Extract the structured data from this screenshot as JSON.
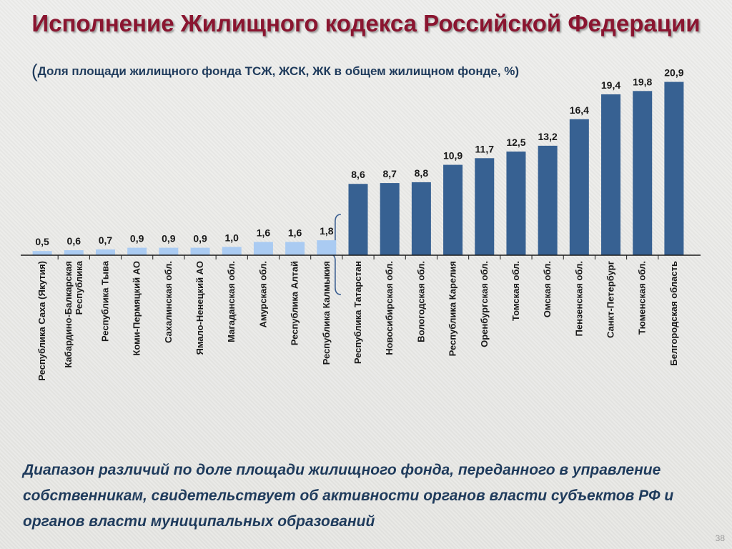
{
  "title": "Исполнение Жилищного кодекса Российской Федерации",
  "subtitle": {
    "open_paren": "(",
    "text": "Доля площади жилищного фонда ТСЖ, ЖСК, ЖК в общем жилищном фонде, %)"
  },
  "note": "Диапазон различий по доле площади жилищного фонда, переданного в управление собственникам, свидетельствует об активности органов власти субъектов РФ и органов власти муниципальных образований",
  "page_number": "38",
  "colors": {
    "light_bar": "#aacbf2",
    "dark_bar": "#376192",
    "title": "#8a1530",
    "text": "#1f3b5c"
  },
  "chart_data": {
    "type": "bar",
    "title": "",
    "xlabel": "",
    "ylabel": "",
    "ylim": [
      0,
      22
    ],
    "grid": false,
    "legend": "none",
    "categories": [
      "Республика Саха (Якутия)",
      "Кабардино-Балкарская Республика",
      "Республика Тыва",
      "Коми-Пермяцкий  АО",
      "Сахалинская обл.",
      "Ямало-Ненецкий АО",
      "Магаданская обл.",
      "Амурская обл.",
      "Республика Алтай",
      "Республика Калмыкия",
      "Республика Татарстан",
      "Новосибирская обл.",
      "Вологодская обл.",
      "Республика Карелия",
      "Оренбургская обл.",
      "Томская обл.",
      "Омская обл.",
      "Пензенская обл.",
      "Санкт-Петербург",
      "Тюменская обл.",
      "Белгородская область"
    ],
    "values": [
      0.5,
      0.6,
      0.7,
      0.9,
      0.9,
      0.9,
      1.0,
      1.6,
      1.6,
      1.8,
      8.6,
      8.7,
      8.8,
      10.9,
      11.7,
      12.5,
      13.2,
      16.4,
      19.4,
      19.8,
      20.9
    ],
    "value_labels": [
      "0,5",
      "0,6",
      "0,7",
      "0,9",
      "0,9",
      "0,9",
      "1,0",
      "1,6",
      "1,6",
      "1,8",
      "8,6",
      "8,7",
      "8,8",
      "10,9",
      "11,7",
      "12,5",
      "13,2",
      "16,4",
      "19,4",
      "19,8",
      "20,9"
    ],
    "category_lines": [
      [
        "Республика Саха (Якутия)"
      ],
      [
        "Кабардино-Балкарская",
        "Республика"
      ],
      [
        "Республика Тыва"
      ],
      [
        "Коми-Пермяцкий  АО"
      ],
      [
        "Сахалинская обл."
      ],
      [
        "Ямало-Ненецкий АО"
      ],
      [
        "Магаданская обл."
      ],
      [
        "Амурская обл."
      ],
      [
        "Республика Алтай"
      ],
      [
        "Республика Калмыкия"
      ],
      [
        "Республика Татарстан"
      ],
      [
        "Новосибирская обл."
      ],
      [
        "Вологодская обл."
      ],
      [
        "Республика Карелия"
      ],
      [
        "Оренбургская обл."
      ],
      [
        "Томская обл."
      ],
      [
        "Омская обл."
      ],
      [
        "Пензенская обл."
      ],
      [
        "Санкт-Петербург"
      ],
      [
        "Тюменская обл."
      ],
      [
        "Белгородская область"
      ]
    ],
    "highlight_from_index": 10
  }
}
